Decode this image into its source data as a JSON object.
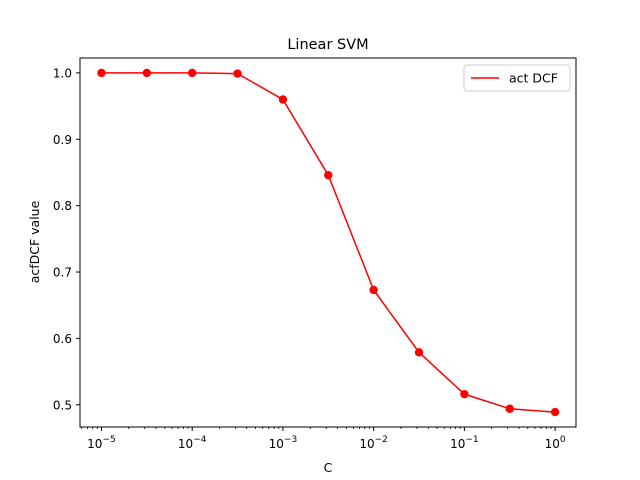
{
  "chart_data": {
    "type": "line",
    "title": "Linear SVM",
    "xlabel": "C",
    "ylabel": "acfDCF value",
    "xscale": "log",
    "xlim": [
      5.8e-06,
      1.7
    ],
    "ylim": [
      0.4665,
      1.0225
    ],
    "x_ticks": [
      {
        "value": 1e-05,
        "base": "10",
        "exp": "−5"
      },
      {
        "value": 0.0001,
        "base": "10",
        "exp": "−4"
      },
      {
        "value": 0.001,
        "base": "10",
        "exp": "−3"
      },
      {
        "value": 0.01,
        "base": "10",
        "exp": "−2"
      },
      {
        "value": 0.1,
        "base": "10",
        "exp": "−1"
      },
      {
        "value": 1,
        "base": "10",
        "exp": "0"
      }
    ],
    "y_ticks": [
      0.5,
      0.6,
      0.7,
      0.8,
      0.9,
      1.0
    ],
    "y_tick_labels": [
      "0.5",
      "0.6",
      "0.7",
      "0.8",
      "0.9",
      "1.0"
    ],
    "grid": false,
    "legend_position": "top-right",
    "series": [
      {
        "name": "act DCF",
        "color": "#ff0000",
        "marker": "circle",
        "x": [
          1e-05,
          3.162e-05,
          0.0001,
          0.0003162,
          0.001,
          0.003162,
          0.01,
          0.03162,
          0.1,
          0.3162,
          1
        ],
        "y": [
          1.0,
          1.0,
          1.0,
          0.999,
          0.96,
          0.846,
          0.673,
          0.579,
          0.516,
          0.494,
          0.489
        ]
      }
    ]
  }
}
